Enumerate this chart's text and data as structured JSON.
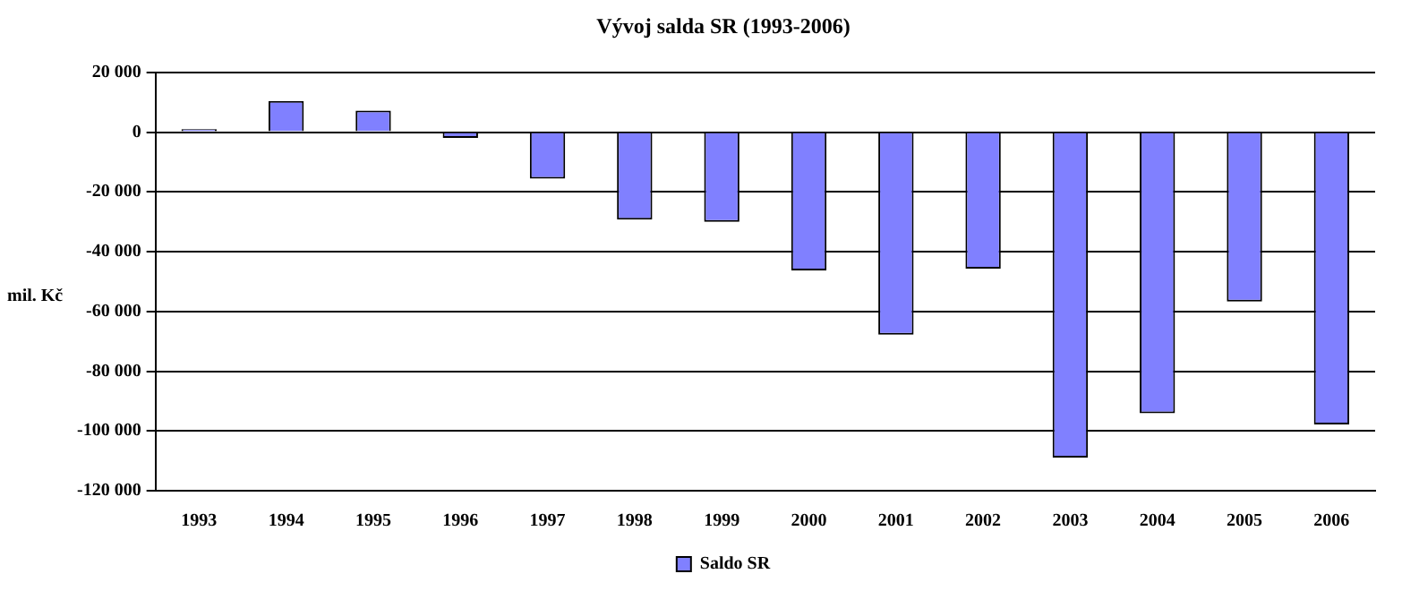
{
  "chart_data": {
    "type": "bar",
    "title": "Vývoj salda SR (1993-2006)",
    "ylabel": "mil. Kč",
    "categories": [
      "1993",
      "1994",
      "1995",
      "1996",
      "1997",
      "1998",
      "1999",
      "2000",
      "2001",
      "2002",
      "2003",
      "2004",
      "2005",
      "2006"
    ],
    "series": [
      {
        "name": "Saldo SR",
        "color": "#8080ff",
        "values": [
          1000,
          10400,
          7200,
          -1900,
          -15600,
          -29300,
          -30000,
          -46300,
          -67800,
          -45700,
          -108900,
          -94100,
          -56700,
          -97800
        ]
      }
    ],
    "ylim": [
      -120000,
      20000
    ],
    "yticks": [
      {
        "value": 20000,
        "label": "20 000"
      },
      {
        "value": 0,
        "label": "0"
      },
      {
        "value": -20000,
        "label": "-20 000"
      },
      {
        "value": -40000,
        "label": "-40 000"
      },
      {
        "value": -60000,
        "label": "-60 000"
      },
      {
        "value": -80000,
        "label": "-80 000"
      },
      {
        "value": -100000,
        "label": "-100 000"
      },
      {
        "value": -120000,
        "label": "-120 000"
      }
    ],
    "grid": "y",
    "legend": "bottom"
  }
}
